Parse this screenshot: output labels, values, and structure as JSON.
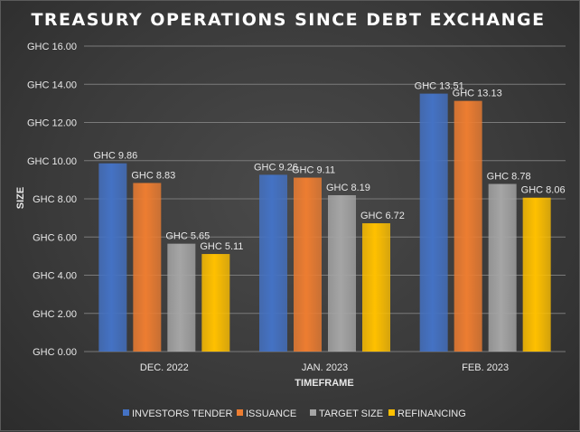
{
  "chart_data": {
    "type": "bar",
    "title": "TREASURY OPERATIONS SINCE DEBT EXCHANGE",
    "xlabel": "TIMEFRAME",
    "ylabel": "SIZE",
    "categories": [
      "DEC. 2022",
      "JAN. 2023",
      "FEB. 2023"
    ],
    "ylim": [
      0,
      16
    ],
    "yticks": [
      0,
      2,
      4,
      6,
      8,
      10,
      12,
      14,
      16
    ],
    "ytick_labels": [
      "GHC 0.00",
      "GHC 2.00",
      "GHC 4.00",
      "GHC 6.00",
      "GHC 8.00",
      "GHC 10.00",
      "GHC 12.00",
      "GHC 14.00",
      "GHC 16.00"
    ],
    "grid": true,
    "legend_position": "bottom",
    "series": [
      {
        "name": "INVESTORS TENDER",
        "color": "#4472c4",
        "values": [
          9.86,
          9.26,
          13.51
        ],
        "labels": [
          "GHC 9.86",
          "GHC 9.26",
          "GHC 13.51"
        ]
      },
      {
        "name": "ISSUANCE",
        "color": "#ed7d31",
        "values": [
          8.83,
          9.11,
          13.13
        ],
        "labels": [
          "GHC 8.83",
          "GHC 9.11",
          "GHC 13.13"
        ]
      },
      {
        "name": "TARGET SIZE",
        "color": "#a5a5a5",
        "values": [
          5.65,
          8.19,
          8.78
        ],
        "labels": [
          "GHC 5.65",
          "GHC 8.19",
          "GHC 8.78"
        ]
      },
      {
        "name": "REFINANCING",
        "color": "#ffc000",
        "values": [
          5.11,
          6.72,
          8.06
        ],
        "labels": [
          "GHC 5.11",
          "GHC 6.72",
          "GHC 8.06"
        ]
      }
    ]
  }
}
